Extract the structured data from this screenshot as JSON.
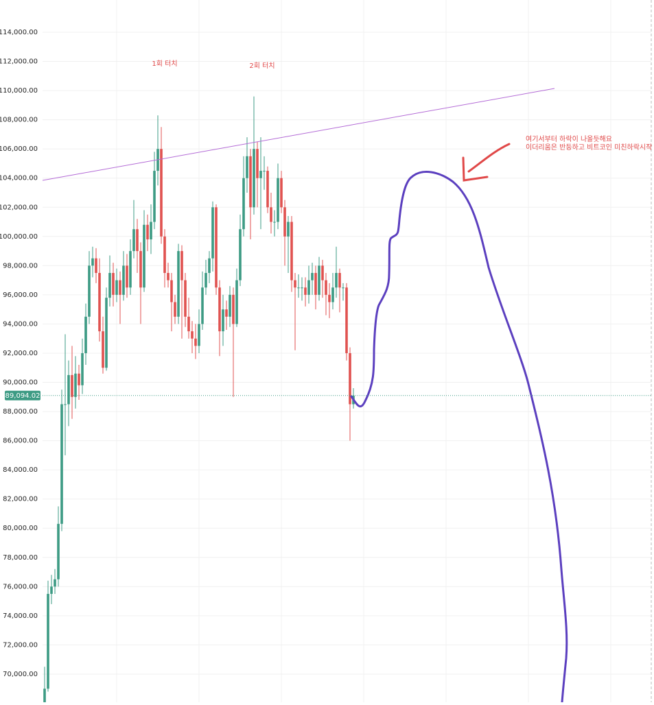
{
  "chart_data": {
    "type": "candlestick",
    "ylim": [
      68070,
      116210
    ],
    "yticks": [
      {
        "value": 70000,
        "label": "70,000.00"
      },
      {
        "value": 72000,
        "label": "72,000.00"
      },
      {
        "value": 74000,
        "label": "74,000.00"
      },
      {
        "value": 76000,
        "label": "76,000.00"
      },
      {
        "value": 78000,
        "label": "78,000.00"
      },
      {
        "value": 80000,
        "label": "80,000.00"
      },
      {
        "value": 82000,
        "label": "82,000.00"
      },
      {
        "value": 84000,
        "label": "84,000.00"
      },
      {
        "value": 86000,
        "label": "86,000.00"
      },
      {
        "value": 88000,
        "label": "88,000.00"
      },
      {
        "value": 90000,
        "label": "90,000.00"
      },
      {
        "value": 92000,
        "label": "92,000.00"
      },
      {
        "value": 94000,
        "label": "94,000.00"
      },
      {
        "value": 96000,
        "label": "96,000.00"
      },
      {
        "value": 98000,
        "label": "98,000.00"
      },
      {
        "value": 100000,
        "label": "100,000.00"
      },
      {
        "value": 102000,
        "label": "102,000.00"
      },
      {
        "value": 104000,
        "label": "104,000.00"
      },
      {
        "value": 106000,
        "label": "106,000.00"
      },
      {
        "value": 108000,
        "label": "108,000.00"
      },
      {
        "value": 110000,
        "label": "110,000.00"
      },
      {
        "value": 112000,
        "label": "112,000.00"
      },
      {
        "value": 114000,
        "label": "114,000.00"
      }
    ],
    "grid": true,
    "up_color": "#3d9b84",
    "down_color": "#e05250",
    "last_price": {
      "value": 89094.02,
      "label": "89,094.02"
    },
    "annotations": [
      "1회 터치",
      "2회 터치",
      "여기서부터 하락이 나올듯해요",
      "이더리움은 반등하고 비트코인 미친하락시작"
    ],
    "open": [
      68000,
      69000,
      75500,
      76000,
      76500,
      80300,
      88500,
      88500,
      90500,
      89000,
      90600,
      89800,
      92000,
      94500,
      98000,
      98500,
      97500,
      93500,
      91000,
      95800,
      97500,
      96000,
      97000,
      96000,
      98000,
      96500,
      99000,
      100500,
      99000,
      96500,
      100800,
      99800,
      101000,
      104500,
      106000,
      100000,
      97500,
      97000,
      95500,
      94500,
      99000,
      97000,
      94500,
      93500,
      93000,
      92500,
      94000,
      96500,
      97500,
      98500,
      102000,
      96500,
      93500,
      95000,
      94500,
      96000,
      94000,
      97000,
      100500,
      104000,
      105500,
      102000,
      106000,
      104000,
      104500,
      104500,
      102000,
      101000,
      101000,
      104000,
      102000,
      100000,
      101000,
      97000,
      96500,
      96500,
      96500,
      96000,
      97000,
      97500,
      96000,
      98000,
      97000,
      96000,
      95500,
      96500,
      97500,
      96500,
      96500,
      92000,
      88500
    ],
    "high": [
      70500,
      76400,
      76800,
      77200,
      81500,
      89500,
      93300,
      91500,
      92500,
      91800,
      91200,
      93000,
      95400,
      99000,
      99300,
      99200,
      98500,
      94500,
      96500,
      98700,
      98200,
      97800,
      97600,
      99000,
      98800,
      99800,
      102500,
      101200,
      99600,
      101800,
      101500,
      102200,
      105800,
      108300,
      107500,
      100500,
      98200,
      97500,
      96000,
      99500,
      99400,
      97500,
      95800,
      94200,
      94000,
      95000,
      97600,
      98400,
      99000,
      102400,
      102200,
      97000,
      96000,
      95600,
      96600,
      96500,
      97800,
      101500,
      105500,
      106800,
      106000,
      109600,
      106500,
      106800,
      105500,
      104800,
      103000,
      101800,
      105000,
      104500,
      102500,
      101400,
      101400,
      97500,
      97400,
      97200,
      97200,
      98000,
      98200,
      98000,
      98600,
      98400,
      97500,
      96800,
      97500,
      99300,
      97800,
      96800,
      96800,
      92400,
      89600
    ],
    "low": [
      66000,
      68800,
      74800,
      75500,
      76000,
      79800,
      85000,
      87000,
      87500,
      88200,
      88800,
      89200,
      91200,
      94000,
      97200,
      96800,
      92800,
      90600,
      90800,
      95200,
      95200,
      95500,
      94000,
      95600,
      95800,
      96000,
      98500,
      97500,
      94000,
      96200,
      99000,
      98800,
      100500,
      103500,
      99500,
      96500,
      96500,
      93500,
      94000,
      94000,
      93000,
      93800,
      93000,
      92000,
      91600,
      92000,
      93600,
      96000,
      96800,
      97600,
      96000,
      91800,
      92500,
      93600,
      93800,
      89000,
      93800,
      96600,
      100000,
      103000,
      99800,
      101500,
      102000,
      100500,
      103200,
      101600,
      100200,
      100000,
      100500,
      101600,
      98000,
      97500,
      96200,
      92200,
      95800,
      95600,
      95200,
      95400,
      96000,
      95000,
      95600,
      95800,
      94600,
      94400,
      95000,
      95800,
      94800,
      95600,
      91500,
      86000,
      88200
    ],
    "close": [
      69000,
      75500,
      76000,
      76500,
      80300,
      88500,
      88500,
      90500,
      89000,
      90600,
      89800,
      92000,
      94500,
      98000,
      98500,
      97500,
      93500,
      91000,
      95800,
      97500,
      96000,
      97000,
      96000,
      98000,
      96500,
      99000,
      100500,
      99000,
      96500,
      100800,
      99800,
      101000,
      104500,
      106000,
      100000,
      97500,
      97000,
      95500,
      94500,
      99000,
      97000,
      94500,
      93500,
      93000,
      92500,
      94000,
      96500,
      97500,
      98500,
      102000,
      96500,
      93500,
      95000,
      94500,
      96000,
      94000,
      97000,
      100500,
      104000,
      105500,
      102000,
      106000,
      104000,
      104500,
      104500,
      102000,
      101000,
      101000,
      104000,
      102000,
      100000,
      101000,
      97000,
      96500,
      96500,
      96500,
      96000,
      97000,
      97500,
      96000,
      98000,
      97000,
      96000,
      95500,
      96500,
      97500,
      96500,
      96500,
      92000,
      88500,
      89094.02
    ]
  }
}
